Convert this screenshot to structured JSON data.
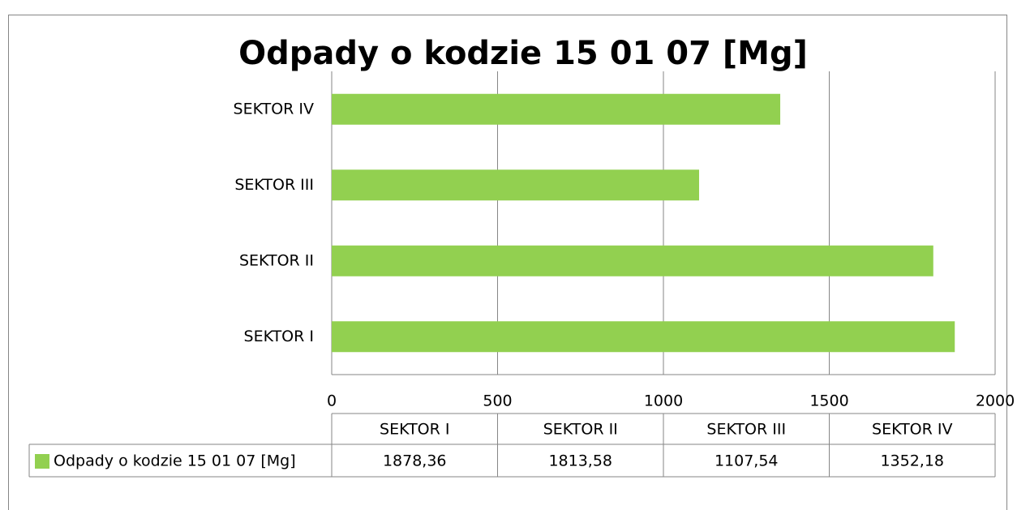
{
  "chart_data": {
    "type": "bar",
    "orientation": "horizontal",
    "title": "Odpady o kodzie 15 01 07 [Mg]",
    "categories": [
      "SEKTOR I",
      "SEKTOR II",
      "SEKTOR III",
      "SEKTOR IV"
    ],
    "series": [
      {
        "name": "Odpady o kodzie 15 01 07 [Mg]",
        "color": "#92d050",
        "values": [
          1878.36,
          1813.58,
          1107.54,
          1352.18
        ],
        "value_labels": [
          "1878,36",
          "1813,58",
          "1107,54",
          "1352,18"
        ]
      }
    ],
    "xlim": [
      0,
      2000
    ],
    "xticks": [
      0,
      500,
      1000,
      1500,
      2000
    ],
    "grid": true
  }
}
